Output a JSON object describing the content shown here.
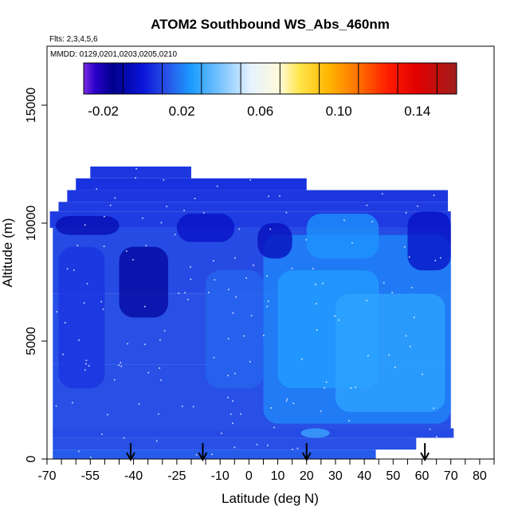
{
  "chart_data": {
    "type": "heatmap",
    "title": "ATOM2 Southbound WS_Abs_460nm",
    "flights_note": "Flts: 2,3,4,5,6",
    "dates_note": "MMDD: 0129,0201,0203,0205,0210",
    "xlabel": "Latitude (deg N)",
    "ylabel": "Altitude (m)",
    "xlim": [
      -70,
      85
    ],
    "ylim": [
      0,
      17500
    ],
    "x_major_ticks": [
      -70,
      -55,
      -40,
      -25,
      -10,
      0,
      10,
      20,
      30,
      40,
      50,
      60,
      70,
      80
    ],
    "x_tick_labels": [
      "-70",
      "-55",
      "-40",
      "-25",
      "-10",
      "0",
      "10",
      "20",
      "30",
      "40",
      "50",
      "60",
      "70",
      "80"
    ],
    "y_ticks": [
      0,
      5000,
      10000,
      15000
    ],
    "y_tick_labels": [
      "0",
      "5000",
      "10000",
      "15000"
    ],
    "colorbar": {
      "range": [
        -0.03,
        0.16
      ],
      "boundaries": [
        -0.03,
        -0.01,
        0.01,
        0.03,
        0.05,
        0.07,
        0.09,
        0.11,
        0.13,
        0.15,
        0.16
      ],
      "tick_values": [
        -0.02,
        0.02,
        0.06,
        0.1,
        0.14
      ],
      "tick_labels": [
        "-0.02",
        "0.02",
        "0.06",
        "0.10",
        "0.14"
      ],
      "color_stops": [
        {
          "value": -0.03,
          "color": "#7a2be0"
        },
        {
          "value": -0.024,
          "color": "#2800c8"
        },
        {
          "value": -0.015,
          "color": "#00008c"
        },
        {
          "value": 0.0,
          "color": "#0a14d8"
        },
        {
          "value": 0.012,
          "color": "#2850e6"
        },
        {
          "value": 0.025,
          "color": "#1c9cff"
        },
        {
          "value": 0.04,
          "color": "#7cc4ff"
        },
        {
          "value": 0.055,
          "color": "#e6f2ff"
        },
        {
          "value": 0.07,
          "color": "#fffad8"
        },
        {
          "value": 0.08,
          "color": "#ffe64a"
        },
        {
          "value": 0.095,
          "color": "#ffb400"
        },
        {
          "value": 0.11,
          "color": "#ff7000"
        },
        {
          "value": 0.125,
          "color": "#ff1c00"
        },
        {
          "value": 0.14,
          "color": "#e00000"
        },
        {
          "value": 0.16,
          "color": "#a01e1e"
        }
      ]
    },
    "curtain": {
      "rows": [
        {
          "alt_min": 0,
          "alt_max": 400,
          "lat_min": -68,
          "lat_max": 44,
          "value": 0.014
        },
        {
          "alt_min": 400,
          "alt_max": 900,
          "lat_min": -68,
          "lat_max": 58,
          "value": 0.012
        },
        {
          "alt_min": 900,
          "alt_max": 1300,
          "lat_min": -68,
          "lat_max": 71,
          "value": 0.011
        },
        {
          "alt_min": 1300,
          "alt_max": 4000,
          "lat_min": -68,
          "lat_max": 70,
          "value": 0.012
        },
        {
          "alt_min": 4000,
          "alt_max": 7000,
          "lat_min": -68,
          "lat_max": 70,
          "value": 0.012
        },
        {
          "alt_min": 7000,
          "alt_max": 9800,
          "lat_min": -68,
          "lat_max": 70,
          "value": 0.011
        },
        {
          "alt_min": 9800,
          "alt_max": 10500,
          "lat_min": -69,
          "lat_max": 70,
          "value": 0.008
        },
        {
          "alt_min": 10500,
          "alt_max": 10900,
          "lat_min": -66,
          "lat_max": 69,
          "value": 0.008
        },
        {
          "alt_min": 10900,
          "alt_max": 11400,
          "lat_min": -63,
          "lat_max": 69,
          "value": 0.007
        },
        {
          "alt_min": 11400,
          "alt_max": 11900,
          "lat_min": -60,
          "lat_max": 20,
          "value": 0.006
        },
        {
          "alt_min": 11900,
          "alt_max": 12400,
          "lat_min": -55,
          "lat_max": -20,
          "value": 0.007
        }
      ],
      "features": [
        {
          "lat_min": 5,
          "lat_max": 70,
          "alt_min": 1500,
          "alt_max": 9500,
          "value": 0.022
        },
        {
          "lat_min": 10,
          "lat_max": 45,
          "alt_min": 3000,
          "alt_max": 8000,
          "value": 0.026
        },
        {
          "lat_min": 30,
          "lat_max": 68,
          "alt_min": 2000,
          "alt_max": 7000,
          "value": 0.028
        },
        {
          "lat_min": 20,
          "lat_max": 45,
          "alt_min": 8500,
          "alt_max": 10400,
          "value": 0.024
        },
        {
          "lat_min": -45,
          "lat_max": -28,
          "alt_min": 6000,
          "alt_max": 9000,
          "value": -0.012
        },
        {
          "lat_min": -67,
          "lat_max": -45,
          "alt_min": 9500,
          "alt_max": 10300,
          "value": -0.008
        },
        {
          "lat_min": -25,
          "lat_max": -5,
          "alt_min": 9200,
          "alt_max": 10400,
          "value": -0.004
        },
        {
          "lat_min": 55,
          "lat_max": 70,
          "alt_min": 8000,
          "alt_max": 10500,
          "value": -0.004
        },
        {
          "lat_min": 3,
          "lat_max": 15,
          "alt_min": 8500,
          "alt_max": 10000,
          "value": -0.006
        },
        {
          "lat_min": 18,
          "lat_max": 28,
          "alt_min": 900,
          "alt_max": 1300,
          "value": 0.03
        },
        {
          "lat_min": -66,
          "lat_max": -50,
          "alt_min": 3000,
          "alt_max": 9000,
          "value": 0.006
        },
        {
          "lat_min": -15,
          "lat_max": 5,
          "alt_min": 3000,
          "alt_max": 8000,
          "value": 0.016
        }
      ]
    },
    "arrow_latitudes": [
      -41,
      -16,
      20,
      61
    ]
  }
}
